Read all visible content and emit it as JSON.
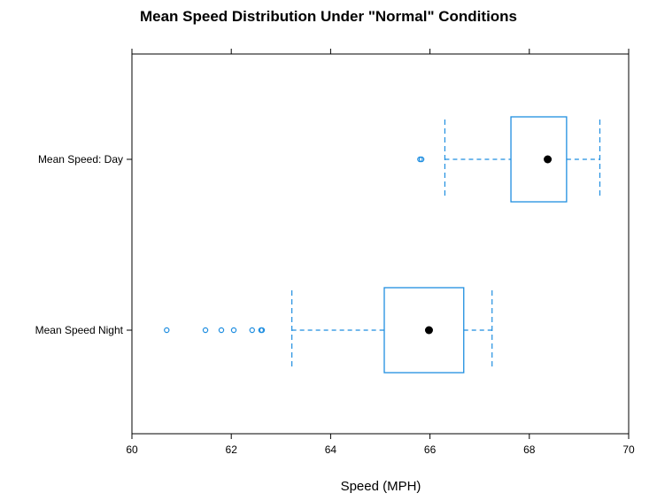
{
  "colors": {
    "box": "#1f8ee0",
    "median": "#000000",
    "frame": "#000000",
    "background": "#ffffff"
  },
  "chart_data": {
    "type": "box",
    "title": "Mean Speed Distribution Under \"Normal\" Conditions",
    "xlabel": "Speed (MPH)",
    "ylabel": "",
    "xlim": [
      60,
      70
    ],
    "xticks": [
      60,
      62,
      64,
      66,
      68,
      70
    ],
    "xtick_labels": [
      "60",
      "62",
      "64",
      "66",
      "68",
      "70"
    ],
    "orientation": "horizontal",
    "grid": false,
    "categories": [
      "Mean Speed: Day",
      "Mean Speed Night"
    ],
    "series": [
      {
        "category": "Mean Speed: Day",
        "whisker_low": 66.3,
        "q1": 67.63,
        "median": 68.37,
        "q3": 68.75,
        "whisker_high": 69.42,
        "outliers": [
          65.8,
          65.83
        ]
      },
      {
        "category": "Mean Speed Night",
        "whisker_low": 63.22,
        "q1": 65.08,
        "median": 65.98,
        "q3": 66.68,
        "whisker_high": 67.25,
        "outliers": [
          60.7,
          61.48,
          61.8,
          62.05,
          62.42,
          62.6,
          62.62
        ]
      }
    ]
  }
}
